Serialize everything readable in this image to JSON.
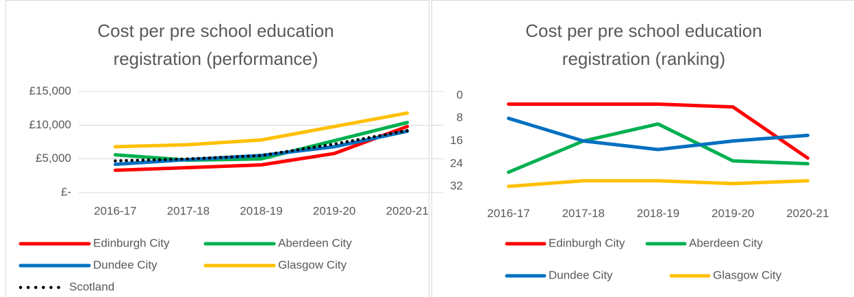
{
  "chart_data": [
    {
      "type": "line",
      "title": [
        "Cost per pre school education",
        "registration (performance)"
      ],
      "categories": [
        "2016-17",
        "2017-18",
        "2018-19",
        "2019-20",
        "2020-21"
      ],
      "ylim": [
        0,
        15000
      ],
      "yticks": [
        {
          "value": 0,
          "label": "£-"
        },
        {
          "value": 5000,
          "label": "£5,000"
        },
        {
          "value": 10000,
          "label": "£10,000"
        },
        {
          "value": 15000,
          "label": "£15,000"
        }
      ],
      "grid": true,
      "legend": "bottom",
      "series": [
        {
          "name": "Edinburgh City",
          "color": "#ff0000",
          "values": [
            3300,
            3700,
            4100,
            5800,
            9800
          ]
        },
        {
          "name": "Aberdeen City",
          "color": "#00b050",
          "values": [
            5600,
            4800,
            5000,
            7700,
            10400
          ]
        },
        {
          "name": "Dundee City",
          "color": "#0070c0",
          "values": [
            4200,
            4900,
            5500,
            6800,
            9100
          ]
        },
        {
          "name": "Glasgow City",
          "color": "#ffc000",
          "values": [
            6800,
            7100,
            7800,
            9800,
            11800
          ]
        },
        {
          "name": "Scotland",
          "color": "#000000",
          "dash": "dotted",
          "values": [
            4700,
            5000,
            5500,
            7200,
            9200
          ]
        }
      ]
    },
    {
      "type": "line",
      "title": [
        "Cost per pre school education",
        "registration (ranking)"
      ],
      "categories": [
        "2016-17",
        "2017-18",
        "2018-19",
        "2019-20",
        "2020-21"
      ],
      "ylim": [
        0,
        35
      ],
      "yticks": [
        0,
        8,
        16,
        24,
        32
      ],
      "inverted": true,
      "grid": false,
      "legend": "bottom",
      "series": [
        {
          "name": "Edinburgh City",
          "color": "#ff0000",
          "values": [
            3,
            3,
            3,
            4,
            22
          ]
        },
        {
          "name": "Aberdeen City",
          "color": "#00b050",
          "values": [
            27,
            16,
            10,
            23,
            24
          ]
        },
        {
          "name": "Dundee City",
          "color": "#0070c0",
          "values": [
            8,
            16,
            19,
            16,
            14
          ]
        },
        {
          "name": "Glasgow City",
          "color": "#ffc000",
          "values": [
            32,
            30,
            30,
            31,
            30
          ]
        }
      ]
    }
  ]
}
